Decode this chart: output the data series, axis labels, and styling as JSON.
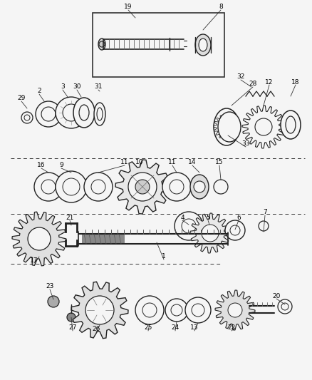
{
  "bg_color": "#f5f5f5",
  "line_color": "#1a1a1a",
  "gray_color": "#555555",
  "dark_color": "#222222",
  "fig_w": 4.38,
  "fig_h": 5.33,
  "dpi": 100
}
